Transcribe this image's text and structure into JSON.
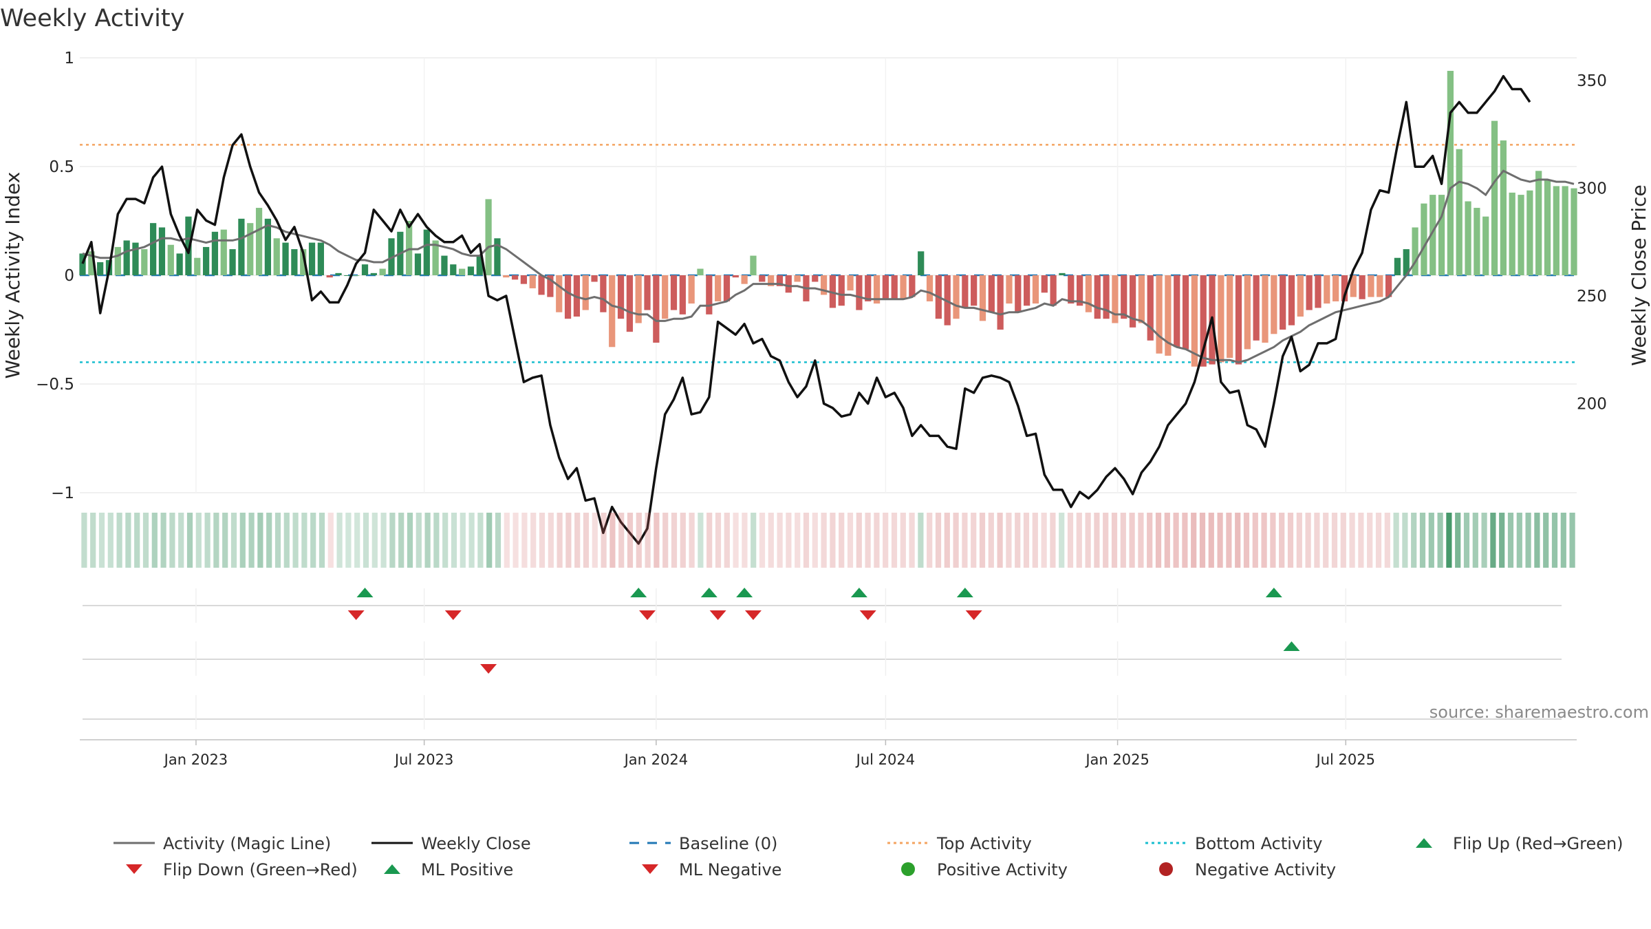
{
  "title": "Weekly Activity",
  "source": "source: sharemaestro.com",
  "colors": {
    "pos_strong": "#2e8b57",
    "pos_light": "#84c084",
    "neg_strong": "#cd5c5c",
    "neg_light": "#e9967a",
    "magic": "#6e6e6e",
    "close": "#111111",
    "baseline": "#1f77b4",
    "top": "#f4a460",
    "bottom": "#17becf",
    "flip_up": "#1a9850",
    "flip_down": "#d62728",
    "pos_dot": "#2ca02c",
    "neg_dot": "#b22222"
  },
  "legend": [
    {
      "label": "Activity (Magic Line)",
      "kind": "line",
      "color": "#6e6e6e"
    },
    {
      "label": "Weekly Close",
      "kind": "line",
      "color": "#111111"
    },
    {
      "label": "Baseline (0)",
      "kind": "dash",
      "color": "#1f77b4"
    },
    {
      "label": "Top Activity",
      "kind": "dot",
      "color": "#f4a460"
    },
    {
      "label": "Bottom Activity",
      "kind": "dot",
      "color": "#17becf"
    },
    {
      "label": "Flip Up (Red→Green)",
      "kind": "tri-up",
      "color": "#1a9850"
    },
    {
      "label": "Flip Down (Green→Red)",
      "kind": "tri-down",
      "color": "#d62728"
    },
    {
      "label": "ML Positive",
      "kind": "tri-up",
      "color": "#1a9850"
    },
    {
      "label": "ML Negative",
      "kind": "tri-down",
      "color": "#d62728"
    },
    {
      "label": "Positive Activity",
      "kind": "circle",
      "color": "#2ca02c"
    },
    {
      "label": "Negative Activity",
      "kind": "circle",
      "color": "#b22222"
    }
  ],
  "chart_data": {
    "type": "bar",
    "xlabel": "",
    "ylabel": "Weekly Activity Index",
    "y2label": "Weekly Close Price",
    "ylim": [
      -1,
      1
    ],
    "y2lim": [
      150,
      360
    ],
    "yticks": [
      "1",
      "0.5",
      "0",
      "−0.5",
      "−1"
    ],
    "yticks_values": [
      1,
      0.5,
      0,
      -0.5,
      -1
    ],
    "y2ticks": [
      "350",
      "300",
      "250",
      "200"
    ],
    "y2ticks_values": [
      350,
      300,
      250,
      200
    ],
    "x_start": "2022-10-03",
    "x_end": "2025-09-15",
    "x_ticks": [
      {
        "label": "Jan 2023",
        "date": "2023-01-01"
      },
      {
        "label": "Jul 2023",
        "date": "2023-07-01"
      },
      {
        "label": "Jan 2024",
        "date": "2024-01-01"
      },
      {
        "label": "Jul 2024",
        "date": "2024-07-01"
      },
      {
        "label": "Jan 2025",
        "date": "2025-01-01"
      },
      {
        "label": "Jul 2025",
        "date": "2025-07-01"
      }
    ],
    "top_activity": 0.6,
    "bottom_activity": -0.4,
    "baseline": 0,
    "activity": [
      0.1,
      0.11,
      0.06,
      0.07,
      0.13,
      0.16,
      0.15,
      0.12,
      0.24,
      0.22,
      0.14,
      0.1,
      0.27,
      0.08,
      0.13,
      0.2,
      0.21,
      0.12,
      0.26,
      0.24,
      0.31,
      0.26,
      0.17,
      0.15,
      0.12,
      0.12,
      0.15,
      0.15,
      -0.01,
      0.01,
      0.0,
      0.0,
      0.05,
      0.01,
      0.03,
      0.17,
      0.2,
      0.25,
      0.1,
      0.21,
      0.16,
      0.09,
      0.05,
      0.03,
      0.04,
      0.09,
      0.35,
      0.17,
      -0.01,
      -0.02,
      -0.04,
      -0.06,
      -0.09,
      -0.1,
      -0.17,
      -0.2,
      -0.19,
      -0.16,
      -0.03,
      -0.17,
      -0.33,
      -0.2,
      -0.26,
      -0.22,
      -0.16,
      -0.31,
      -0.2,
      -0.16,
      -0.18,
      -0.13,
      0.03,
      -0.18,
      -0.12,
      -0.12,
      -0.01,
      -0.04,
      0.09,
      -0.03,
      -0.05,
      -0.05,
      -0.08,
      -0.03,
      -0.12,
      -0.03,
      -0.09,
      -0.15,
      -0.14,
      -0.07,
      -0.16,
      -0.12,
      -0.13,
      -0.11,
      -0.11,
      -0.11,
      -0.1,
      0.11,
      -0.12,
      -0.2,
      -0.23,
      -0.2,
      -0.15,
      -0.14,
      -0.21,
      -0.17,
      -0.25,
      -0.13,
      -0.17,
      -0.14,
      -0.13,
      -0.08,
      -0.14,
      0.01,
      -0.13,
      -0.14,
      -0.17,
      -0.2,
      -0.2,
      -0.22,
      -0.2,
      -0.24,
      -0.22,
      -0.3,
      -0.36,
      -0.37,
      -0.33,
      -0.34,
      -0.42,
      -0.42,
      -0.41,
      -0.4,
      -0.38,
      -0.41,
      -0.34,
      -0.3,
      -0.31,
      -0.27,
      -0.25,
      -0.23,
      -0.19,
      -0.16,
      -0.15,
      -0.13,
      -0.12,
      -0.12,
      -0.1,
      -0.11,
      -0.1,
      -0.1,
      -0.1,
      0.08,
      0.12,
      0.22,
      0.33,
      0.37,
      0.37,
      0.94,
      0.58,
      0.34,
      0.31,
      0.27,
      0.71,
      0.62,
      0.38,
      0.37,
      0.39,
      0.48,
      0.44,
      0.41,
      0.41,
      0.4
    ],
    "magic_line": [
      0.1,
      0.09,
      0.08,
      0.08,
      0.09,
      0.11,
      0.12,
      0.13,
      0.15,
      0.17,
      0.17,
      0.16,
      0.17,
      0.16,
      0.15,
      0.16,
      0.16,
      0.16,
      0.17,
      0.19,
      0.21,
      0.23,
      0.22,
      0.2,
      0.19,
      0.18,
      0.17,
      0.16,
      0.14,
      0.11,
      0.09,
      0.07,
      0.07,
      0.06,
      0.06,
      0.08,
      0.1,
      0.12,
      0.12,
      0.14,
      0.14,
      0.13,
      0.12,
      0.1,
      0.09,
      0.09,
      0.13,
      0.14,
      0.12,
      0.09,
      0.06,
      0.03,
      0.0,
      -0.02,
      -0.05,
      -0.08,
      -0.1,
      -0.11,
      -0.1,
      -0.11,
      -0.14,
      -0.15,
      -0.17,
      -0.18,
      -0.18,
      -0.21,
      -0.21,
      -0.2,
      -0.2,
      -0.19,
      -0.14,
      -0.14,
      -0.13,
      -0.12,
      -0.09,
      -0.07,
      -0.04,
      -0.04,
      -0.04,
      -0.04,
      -0.05,
      -0.05,
      -0.06,
      -0.06,
      -0.07,
      -0.08,
      -0.09,
      -0.09,
      -0.1,
      -0.11,
      -0.11,
      -0.11,
      -0.11,
      -0.11,
      -0.1,
      -0.07,
      -0.08,
      -0.1,
      -0.12,
      -0.14,
      -0.15,
      -0.15,
      -0.16,
      -0.17,
      -0.18,
      -0.17,
      -0.17,
      -0.16,
      -0.15,
      -0.13,
      -0.14,
      -0.11,
      -0.12,
      -0.12,
      -0.13,
      -0.15,
      -0.16,
      -0.18,
      -0.18,
      -0.2,
      -0.21,
      -0.24,
      -0.28,
      -0.31,
      -0.33,
      -0.34,
      -0.36,
      -0.38,
      -0.39,
      -0.39,
      -0.39,
      -0.4,
      -0.39,
      -0.37,
      -0.35,
      -0.33,
      -0.3,
      -0.28,
      -0.26,
      -0.23,
      -0.21,
      -0.19,
      -0.17,
      -0.16,
      -0.15,
      -0.14,
      -0.13,
      -0.12,
      -0.1,
      -0.05,
      0.0,
      0.06,
      0.13,
      0.2,
      0.27,
      0.4,
      0.43,
      0.42,
      0.4,
      0.37,
      0.43,
      0.48,
      0.46,
      0.44,
      0.43,
      0.44,
      0.44,
      0.43,
      0.43,
      0.42
    ],
    "weekly_close": [
      265,
      275,
      242,
      262,
      288,
      295,
      295,
      293,
      305,
      310,
      288,
      278,
      270,
      290,
      285,
      283,
      305,
      320,
      325,
      310,
      298,
      292,
      285,
      276,
      282,
      270,
      248,
      252,
      247,
      247,
      255,
      265,
      270,
      290,
      285,
      280,
      290,
      282,
      288,
      282,
      278,
      275,
      275,
      278,
      270,
      274,
      250,
      248,
      250,
      230,
      210,
      212,
      213,
      190,
      175,
      165,
      170,
      155,
      156,
      140,
      152,
      145,
      140,
      135,
      142,
      170,
      195,
      202,
      212,
      195,
      196,
      203,
      238,
      235,
      232,
      237,
      228,
      230,
      222,
      220,
      210,
      203,
      208,
      220,
      200,
      198,
      194,
      195,
      205,
      200,
      212,
      203,
      205,
      198,
      185,
      190,
      185,
      185,
      180,
      179,
      207,
      205,
      212,
      213,
      212,
      210,
      199,
      185,
      186,
      167,
      160,
      160,
      152,
      159,
      156,
      160,
      166,
      170,
      165,
      158,
      168,
      173,
      180,
      190,
      195,
      200,
      210,
      225,
      240,
      210,
      205,
      206,
      190,
      188,
      180,
      200,
      222,
      231,
      215,
      218,
      228,
      228,
      230,
      250,
      262,
      270,
      290,
      299,
      298,
      320,
      340,
      310,
      310,
      315,
      302,
      335,
      340,
      335,
      335,
      340,
      345,
      352,
      346,
      346,
      340
    ],
    "flips": {
      "flip_up": [
        "2023-05-15",
        "2023-12-18",
        "2024-02-12",
        "2024-03-11",
        "2024-06-10",
        "2024-09-02",
        "2025-05-05"
      ],
      "flip_down": [
        "2023-05-08",
        "2023-07-24",
        "2023-12-25",
        "2024-02-19",
        "2024-03-18",
        "2024-06-17",
        "2024-09-09"
      ],
      "ml_positive": [
        "2025-05-19"
      ],
      "ml_negative": [
        "2023-08-21"
      ]
    }
  }
}
